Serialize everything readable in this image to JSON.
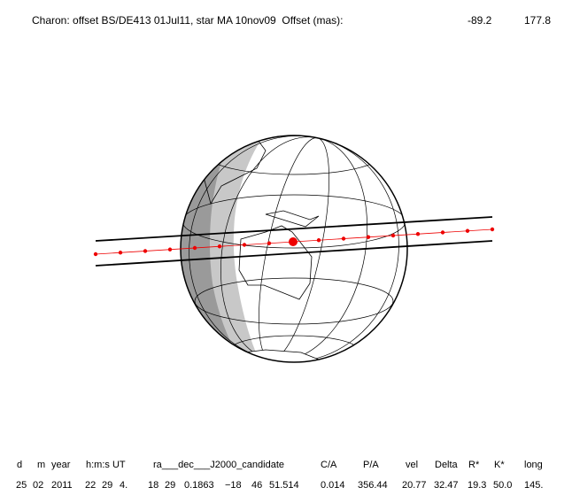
{
  "title": "Charon: offset BS/DE413 01Jul11, star MA 10nov09  Offset (mas):",
  "offsets": [
    "-89.2",
    "177.8"
  ],
  "table": {
    "header": [
      "d",
      "m",
      "year",
      "h:m:s UT",
      "ra___dec___J2000_candidate",
      "C/A",
      "P/A",
      "vel",
      "Delta",
      "R*",
      "K*",
      "long"
    ],
    "rows": [
      [
        "25",
        "02",
        "2011",
        "22",
        "29",
        "4.",
        "18",
        "29",
        "0.1863",
        "−18",
        "46",
        "51.514",
        "0.014",
        "356.44",
        "20.77",
        "32.47",
        "19.3",
        "50.0",
        "145."
      ]
    ]
  }
}
